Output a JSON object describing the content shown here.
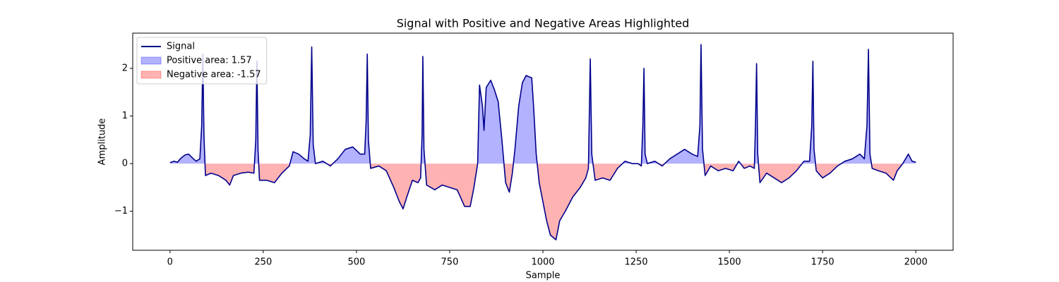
{
  "chart_data": {
    "type": "line",
    "title": "Signal with Positive and Negative Areas Highlighted",
    "x_label": "Sample",
    "y_label": "Amplitude",
    "x": [
      0,
      10,
      20,
      30,
      40,
      50,
      60,
      70,
      80,
      85,
      88,
      91,
      95,
      110,
      130,
      150,
      160,
      170,
      190,
      210,
      225,
      230,
      233,
      236,
      240,
      260,
      280,
      300,
      320,
      330,
      345,
      360,
      370,
      376,
      380,
      384,
      390,
      410,
      430,
      450,
      470,
      490,
      510,
      522,
      526,
      529,
      532,
      538,
      560,
      580,
      600,
      615,
      625,
      635,
      650,
      665,
      672,
      676,
      678,
      681,
      688,
      710,
      730,
      750,
      770,
      790,
      805,
      815,
      825,
      830,
      838,
      842,
      848,
      860,
      870,
      880,
      890,
      900,
      910,
      918,
      925,
      935,
      945,
      955,
      970,
      975,
      982,
      990,
      1000,
      1010,
      1020,
      1035,
      1045,
      1060,
      1080,
      1100,
      1115,
      1122,
      1127,
      1131,
      1140,
      1160,
      1180,
      1200,
      1220,
      1240,
      1255,
      1264,
      1268,
      1271,
      1274,
      1280,
      1300,
      1320,
      1340,
      1360,
      1380,
      1400,
      1415,
      1421,
      1424,
      1428,
      1435,
      1450,
      1470,
      1490,
      1510,
      1525,
      1540,
      1555,
      1567,
      1570,
      1573,
      1576,
      1582,
      1600,
      1620,
      1640,
      1660,
      1680,
      1700,
      1715,
      1721,
      1724,
      1727,
      1733,
      1750,
      1770,
      1790,
      1810,
      1830,
      1850,
      1862,
      1869,
      1873,
      1877,
      1883,
      1900,
      1920,
      1940,
      1950,
      1965,
      1980,
      1990,
      2000
    ],
    "series": [
      {
        "name": "Signal",
        "color": "#00008b",
        "values": [
          0.02,
          0.05,
          0.03,
          0.12,
          0.18,
          0.2,
          0.12,
          0.05,
          0.1,
          0.8,
          2.3,
          0.6,
          -0.25,
          -0.2,
          -0.25,
          -0.35,
          -0.45,
          -0.25,
          -0.2,
          -0.18,
          -0.2,
          0.5,
          2.15,
          0.3,
          -0.35,
          -0.35,
          -0.4,
          -0.2,
          -0.05,
          0.25,
          0.2,
          0.1,
          0.05,
          0.6,
          2.45,
          0.4,
          0.0,
          0.05,
          -0.05,
          0.1,
          0.3,
          0.35,
          0.2,
          0.2,
          0.9,
          2.3,
          0.5,
          -0.1,
          -0.05,
          -0.15,
          -0.5,
          -0.8,
          -0.95,
          -0.7,
          -0.35,
          -0.4,
          -0.3,
          0.6,
          2.25,
          0.3,
          -0.45,
          -0.55,
          -0.45,
          -0.5,
          -0.55,
          -0.9,
          -0.9,
          -0.5,
          0.0,
          1.65,
          1.2,
          0.7,
          1.6,
          1.75,
          1.55,
          1.3,
          0.5,
          -0.4,
          -0.6,
          -0.2,
          0.3,
          1.2,
          1.7,
          1.85,
          1.8,
          1.2,
          0.2,
          -0.4,
          -0.8,
          -1.2,
          -1.5,
          -1.6,
          -1.2,
          -1.0,
          -0.7,
          -0.5,
          -0.3,
          -0.1,
          2.2,
          0.2,
          -0.35,
          -0.3,
          -0.35,
          -0.1,
          0.05,
          0.0,
          0.0,
          -0.05,
          0.8,
          2.0,
          0.2,
          0.0,
          0.05,
          -0.05,
          0.1,
          0.2,
          0.3,
          0.2,
          0.15,
          0.8,
          2.5,
          0.3,
          -0.25,
          -0.05,
          -0.15,
          -0.1,
          -0.15,
          0.05,
          -0.1,
          -0.05,
          -0.1,
          0.8,
          2.1,
          0.2,
          -0.4,
          -0.2,
          -0.3,
          -0.4,
          -0.3,
          -0.15,
          0.05,
          0.05,
          0.8,
          2.15,
          0.3,
          -0.15,
          -0.3,
          -0.2,
          -0.05,
          0.05,
          0.1,
          0.2,
          0.1,
          0.8,
          2.4,
          0.2,
          -0.1,
          -0.15,
          -0.2,
          -0.35,
          -0.15,
          0.0,
          0.2,
          0.05,
          0.03
        ]
      }
    ],
    "fills": [
      {
        "name": "Positive area: 1.57",
        "color": "#0000ff",
        "opacity": 0.3,
        "side": "positive"
      },
      {
        "name": "Negative area: -1.57",
        "color": "#ff0000",
        "opacity": 0.3,
        "side": "negative"
      }
    ],
    "xlim": [
      -100,
      2100
    ],
    "ylim": [
      -1.82,
      2.74
    ],
    "xticks": [
      0,
      250,
      500,
      750,
      1000,
      1250,
      1500,
      1750,
      2000
    ],
    "yticks": [
      {
        "value": -1,
        "label": "−1"
      },
      0,
      1,
      2
    ],
    "legend": "upper left"
  }
}
